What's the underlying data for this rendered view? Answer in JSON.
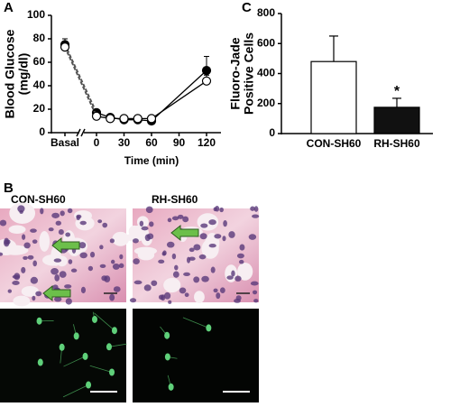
{
  "chart_data": [
    {
      "type": "line",
      "panel_label": "A",
      "ylabel": [
        "Blood Glucose",
        "(mg/dl)"
      ],
      "xlabel": "Time (min)",
      "basal_label": "Basal",
      "x": [
        0,
        15,
        30,
        45,
        60,
        120
      ],
      "xlim": [
        0,
        120
      ],
      "xticks": [
        0,
        30,
        60,
        90,
        120
      ],
      "ylim": [
        0,
        100
      ],
      "yticks": [
        0,
        20,
        40,
        60,
        80,
        100
      ],
      "series": [
        {
          "color": "#000000",
          "marker_fill": "#000000",
          "basal": 75,
          "basal_error": 5,
          "values": [
            17,
            13,
            11,
            11,
            10,
            53
          ],
          "errors": [
            2,
            1,
            1,
            1,
            1,
            12
          ]
        },
        {
          "color": "#000000",
          "marker_fill": "#ffffff",
          "basal": 73,
          "basal_error": 4,
          "values": [
            14,
            12,
            12,
            12,
            12,
            44
          ],
          "errors": [
            2,
            1,
            1,
            1,
            1,
            5
          ]
        }
      ]
    },
    {
      "type": "bar",
      "panel_label": "C",
      "ylabel": [
        "Fluoro-Jade",
        "Positive Cells"
      ],
      "categories": [
        "CON-SH60",
        "RH-SH60"
      ],
      "values": [
        480,
        175
      ],
      "errors": [
        170,
        60
      ],
      "colors": [
        "#ffffff",
        "#111111"
      ],
      "ylim": [
        0,
        800
      ],
      "yticks": [
        0,
        200,
        400,
        600,
        800
      ],
      "annotation": "*"
    }
  ],
  "panel_b": {
    "panel_label": "B",
    "images": [
      {
        "label": "CON-SH60"
      },
      {
        "label": "RH-SH60"
      }
    ]
  }
}
